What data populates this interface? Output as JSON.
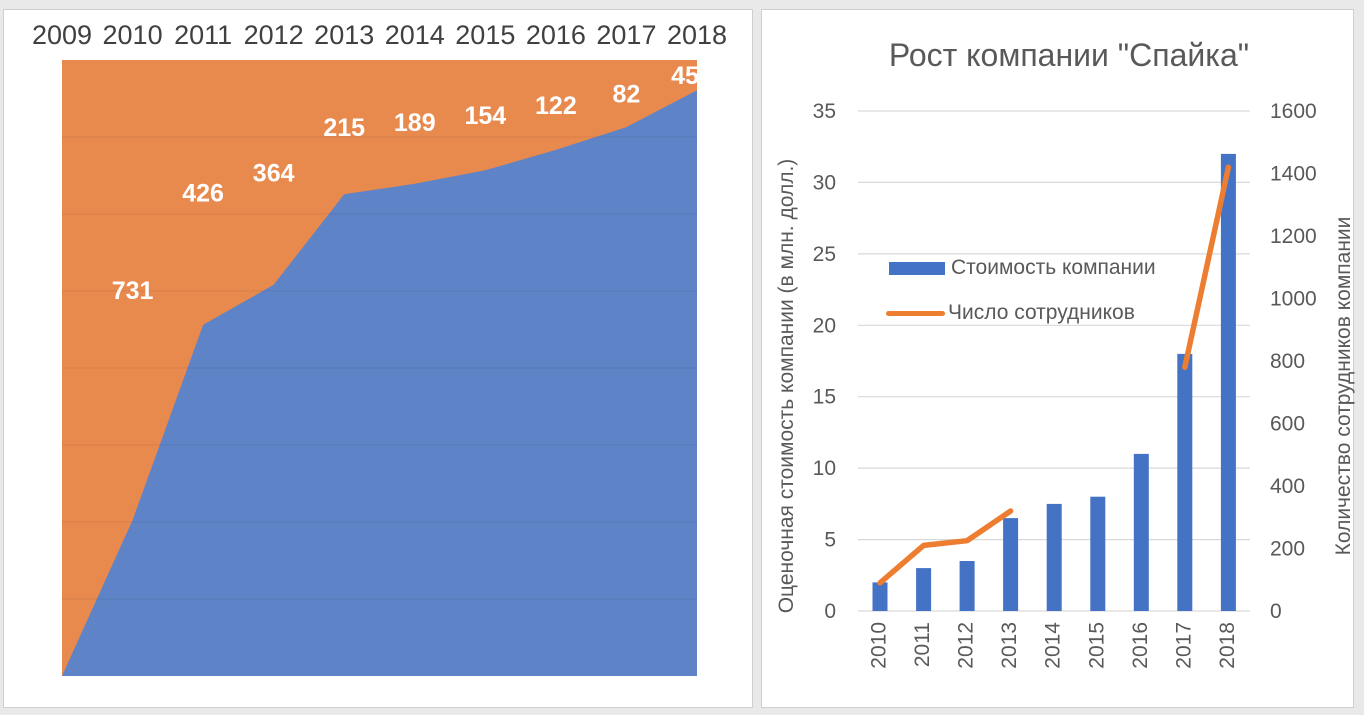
{
  "page": {
    "background": "#e9e9e9",
    "card_background": "#ffffff",
    "card_border": "#cfcfcf"
  },
  "colors": {
    "area_blue": "#5E83C6",
    "area_orange": "#E8894E",
    "bar_blue": "#4472C4",
    "line_orange": "#ED7D31",
    "axis_text": "#595959",
    "year_text": "#404040",
    "gridline": "#d9d9d9",
    "data_label": "#ffffff"
  },
  "chart_data": [
    {
      "type": "area",
      "subtype": "100percent-stacked",
      "title": "",
      "categories": [
        "2009",
        "2010",
        "2011",
        "2012",
        "2013",
        "2014",
        "2015",
        "2016",
        "2017",
        "2018"
      ],
      "category_labels_position": "top",
      "legend": "none",
      "grid": "faint-horizontal-bands",
      "grid_divisions": 8,
      "series": [
        {
          "name": "blue-lower-area",
          "role": "bottom-stack",
          "share_of_height": [
            0,
            0.253,
            0.57,
            0.635,
            0.782,
            0.799,
            0.821,
            0.854,
            0.891,
            0.951
          ]
        },
        {
          "name": "orange-upper-area",
          "role": "top-stack-fill-to-100%",
          "data_labels": [
            null,
            731,
            426,
            364,
            215,
            189,
            154,
            122,
            82,
            45
          ]
        }
      ]
    },
    {
      "type": "combo",
      "title": "Рост компании \"Спайка\"",
      "categories": [
        "2010",
        "2011",
        "2012",
        "2013",
        "2014",
        "2015",
        "2016",
        "2017",
        "2018"
      ],
      "series": [
        {
          "name": "Стоимость компании",
          "chart": "bar",
          "axis": "left",
          "values": [
            2,
            3,
            3.5,
            6.5,
            7.5,
            8,
            11,
            18,
            32
          ]
        },
        {
          "name": "Число сотрудников",
          "chart": "line",
          "axis": "right",
          "values": [
            90,
            210,
            225,
            320,
            null,
            null,
            null,
            780,
            1420
          ]
        }
      ],
      "ylabel_left": "Оценочная стоимость компании (в млн. долл.)",
      "ylabel_right": "Количество сотрудников компании",
      "ylim_left": [
        0,
        35
      ],
      "yticks_left": [
        0,
        5,
        10,
        15,
        20,
        25,
        30,
        35
      ],
      "ylim_right": [
        0,
        1600
      ],
      "yticks_right": [
        0,
        200,
        400,
        600,
        800,
        1000,
        1200,
        1400,
        1600
      ],
      "xlabel_rotation": "vertical-bottom-to-top",
      "grid": true,
      "legend_position": "inside-plot-left"
    }
  ]
}
